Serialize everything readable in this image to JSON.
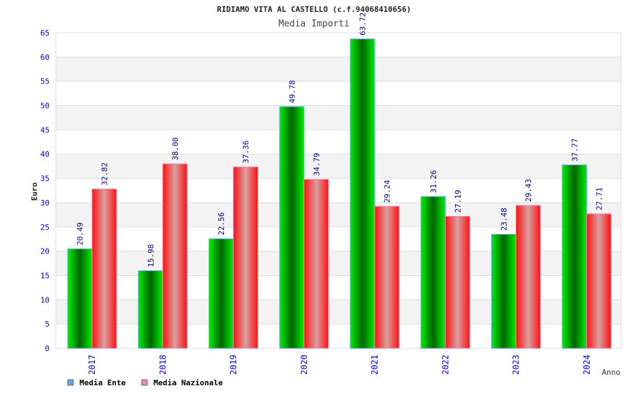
{
  "chart_data": {
    "type": "bar",
    "title": "RIDIAMO VITA AL CASTELLO (c.f.94068410656)",
    "subtitle": "Media Importi",
    "xlabel": "Anno",
    "ylabel": "Euro",
    "ylim": [
      0,
      65
    ],
    "yticks": [
      "0",
      "5",
      "10",
      "15",
      "20",
      "25",
      "30",
      "35",
      "40",
      "45",
      "50",
      "55",
      "60",
      "65"
    ],
    "categories": [
      "2017",
      "2018",
      "2019",
      "2020",
      "2021",
      "2022",
      "2023",
      "2024"
    ],
    "series": [
      {
        "name": "Media Ente",
        "values": [
          20.49,
          15.98,
          22.56,
          49.78,
          63.72,
          31.26,
          23.48,
          37.77
        ],
        "labels": [
          "20.49",
          "15.98",
          "22.56",
          "49.78",
          "63.72",
          "31.26",
          "23.48",
          "37.77"
        ],
        "legend_color": "#5fa8f0"
      },
      {
        "name": "Media Nazionale",
        "values": [
          32.82,
          38.0,
          37.36,
          34.79,
          29.24,
          27.19,
          29.43,
          27.71
        ],
        "labels": [
          "32.82",
          "38.00",
          "37.36",
          "34.79",
          "29.24",
          "27.19",
          "29.43",
          "27.71"
        ],
        "legend_color": "#e88cc0"
      }
    ],
    "grid": true,
    "legend_position": "bottom-left"
  }
}
